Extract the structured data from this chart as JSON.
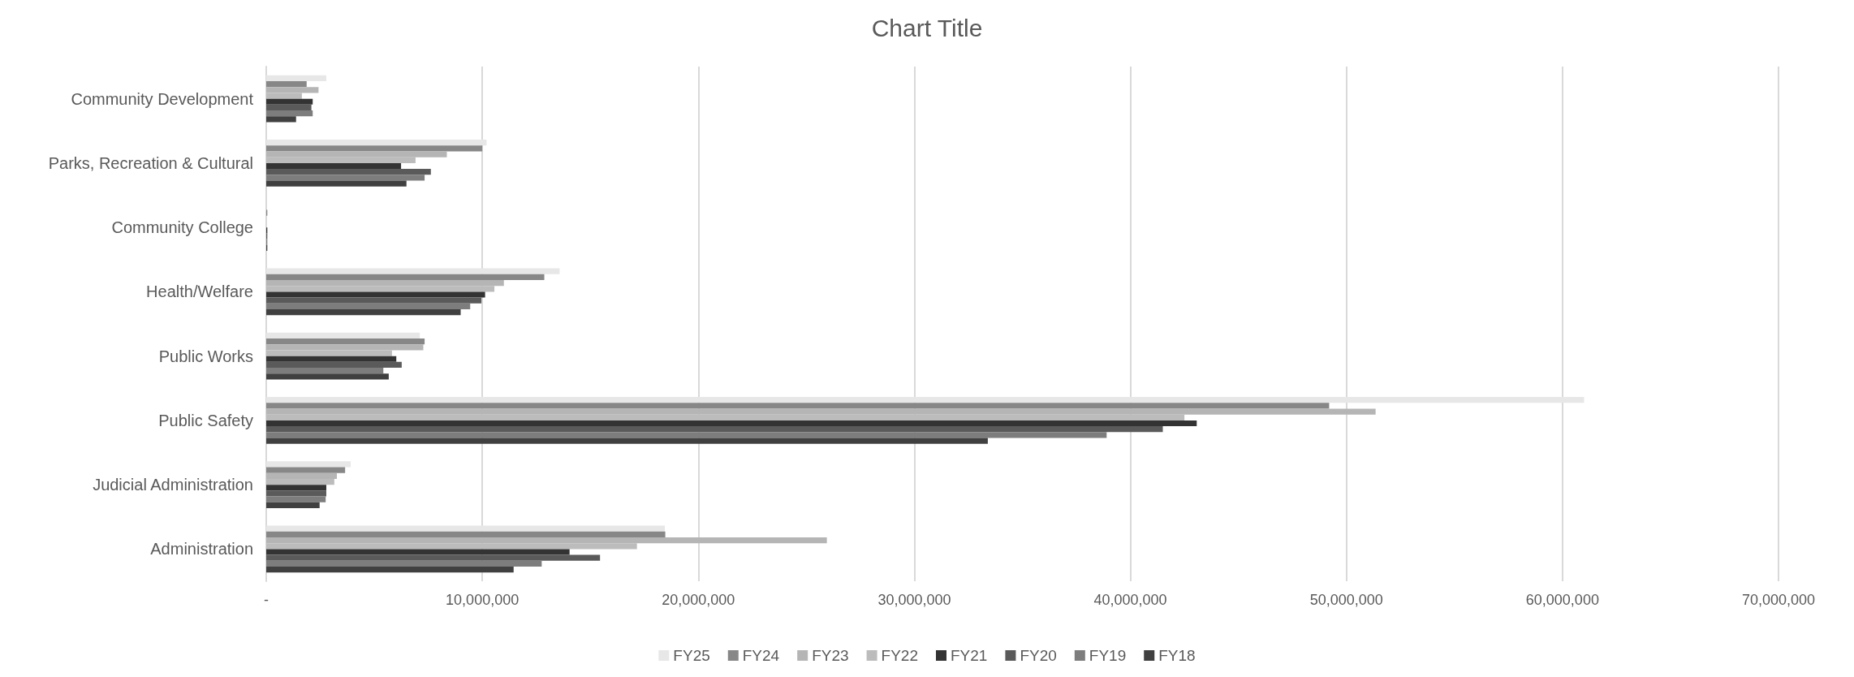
{
  "chart_data": {
    "type": "bar",
    "orientation": "horizontal",
    "title": "Chart Title",
    "categories": [
      "Community Development",
      "Parks, Recreation & Cultural",
      "Community College",
      "Health/Welfare",
      "Public Works",
      "Public Safety",
      "Judicial Administration",
      "Administration"
    ],
    "series": [
      {
        "name": "FY25",
        "color": "#e7e7e7",
        "values": [
          2780000,
          10200000,
          null,
          13580000,
          7110000,
          61000000,
          3910000,
          18450000
        ]
      },
      {
        "name": "FY24",
        "color": "#878787",
        "values": [
          1870000,
          10000000,
          50000,
          12870000,
          7330000,
          49200000,
          3650000,
          18470000
        ]
      },
      {
        "name": "FY23",
        "color": "#b5b5b5",
        "values": [
          2420000,
          8360000,
          null,
          11000000,
          7270000,
          51350000,
          3270000,
          25950000
        ]
      },
      {
        "name": "FY22",
        "color": "#bcbcbc",
        "values": [
          1650000,
          6910000,
          null,
          10560000,
          5820000,
          42500000,
          3150000,
          17160000
        ]
      },
      {
        "name": "FY21",
        "color": "#333333",
        "values": [
          2150000,
          6240000,
          50000,
          10130000,
          6020000,
          43070000,
          2780000,
          14040000
        ]
      },
      {
        "name": "FY20",
        "color": "#5a5a5a",
        "values": [
          2090000,
          7620000,
          50000,
          9960000,
          6270000,
          41500000,
          2780000,
          15450000
        ]
      },
      {
        "name": "FY19",
        "color": "#7d7d7d",
        "values": [
          2150000,
          7330000,
          50000,
          9440000,
          5420000,
          38900000,
          2750000,
          12750000
        ]
      },
      {
        "name": "FY18",
        "color": "#404040",
        "values": [
          1380000,
          6490000,
          50000,
          9000000,
          5670000,
          33400000,
          2470000,
          11450000
        ]
      }
    ],
    "xlim": [
      0,
      70000000
    ],
    "xticks": [
      {
        "value": 0,
        "label": "-"
      },
      {
        "value": 10000000,
        "label": "10,000,000"
      },
      {
        "value": 20000000,
        "label": "20,000,000"
      },
      {
        "value": 30000000,
        "label": "30,000,000"
      },
      {
        "value": 40000000,
        "label": "40,000,000"
      },
      {
        "value": 50000000,
        "label": "50,000,000"
      },
      {
        "value": 60000000,
        "label": "60,000,000"
      },
      {
        "value": 70000000,
        "label": "70,000,000"
      }
    ],
    "grid": "x",
    "legend": "bottom"
  }
}
